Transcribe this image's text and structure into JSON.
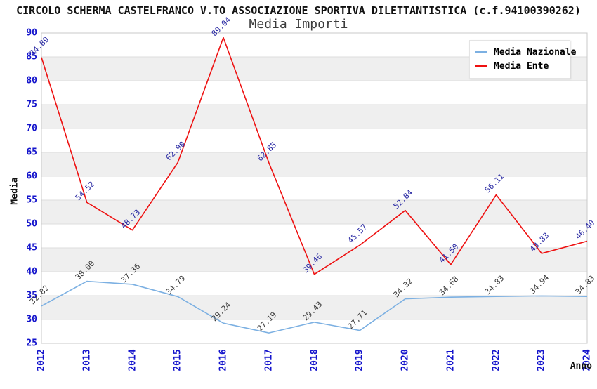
{
  "header": {
    "title": "CIRCOLO SCHERMA CASTELFRANCO V.TO ASSOCIAZIONE SPORTIVA DILETTANTISTICA (c.f.94100390262)"
  },
  "chart_data": {
    "type": "line",
    "title": "Media Importi",
    "xlabel": "Anno",
    "ylabel": "Media",
    "categories": [
      "2012",
      "2013",
      "2014",
      "2015",
      "2016",
      "2017",
      "2018",
      "2019",
      "2020",
      "2021",
      "2022",
      "2023",
      "2024"
    ],
    "series": [
      {
        "name": "Media Nazionale",
        "color": "#7cb0e2",
        "label_color": "#3a3a3a",
        "values": [
          32.82,
          38.0,
          37.36,
          34.79,
          29.24,
          27.19,
          29.43,
          27.71,
          34.32,
          34.68,
          34.83,
          34.94,
          34.83
        ]
      },
      {
        "name": "Media Ente",
        "color": "#ee1111",
        "label_color": "#2929a3",
        "values": [
          84.89,
          54.52,
          48.73,
          62.9,
          89.04,
          62.85,
          39.46,
          45.57,
          52.84,
          41.5,
          56.11,
          43.83,
          46.4
        ]
      }
    ],
    "ylim": [
      25,
      90
    ],
    "ytick_step": 5,
    "grid": "horizontal-bands",
    "legend_position": "top-right",
    "colors": {
      "tick_label": "#1414cc",
      "band": "#efefef",
      "gridline": "#dcdcdc",
      "frame": "#c8c8c8",
      "background": "#ffffff"
    }
  }
}
